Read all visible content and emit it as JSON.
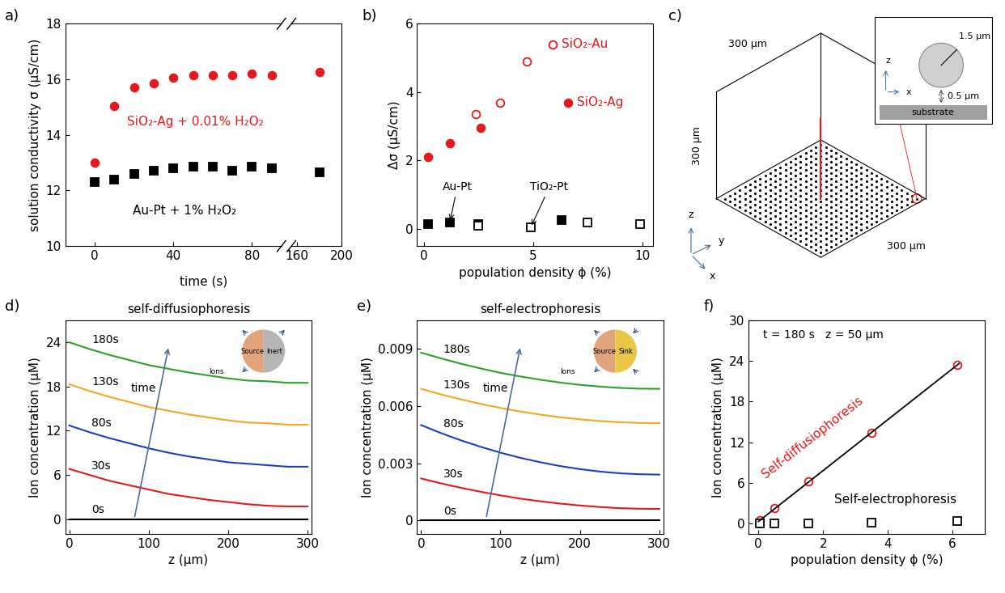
{
  "chart_data": [
    {
      "panel": "a)",
      "type": "scatter",
      "xlabel": "time (s)",
      "ylabel": "solution conductivity σ (μS/cm)",
      "xlim": [
        [
          -15,
          95
        ],
        [
          155,
          200
        ]
      ],
      "xticks": [
        0,
        40,
        80,
        160,
        200
      ],
      "ylim": [
        10,
        18
      ],
      "yticks": [
        10,
        12,
        14,
        16,
        18
      ],
      "series": [
        {
          "name": "SiO₂-Ag + 0.01% H₂O₂",
          "color": "#e31a1c",
          "marker": "circle",
          "x": [
            0,
            10,
            20,
            30,
            40,
            50,
            60,
            70,
            80,
            90,
            180
          ],
          "values": [
            13.0,
            15.05,
            15.7,
            15.85,
            16.05,
            16.15,
            16.15,
            16.15,
            16.2,
            16.15,
            16.25
          ]
        },
        {
          "name": "Au-Pt + 1% H₂O₂",
          "color": "#000000",
          "marker": "square",
          "x": [
            0,
            10,
            20,
            30,
            40,
            50,
            60,
            70,
            80,
            90,
            180
          ],
          "values": [
            12.3,
            12.4,
            12.6,
            12.7,
            12.8,
            12.85,
            12.85,
            12.7,
            12.85,
            12.8,
            12.65
          ]
        }
      ]
    },
    {
      "panel": "b)",
      "type": "scatter",
      "xlabel": "population density ϕ (%)",
      "ylabel": "Δσ (μS/cm)",
      "xlim": [
        -0.3,
        10.5
      ],
      "xticks": [
        0,
        5,
        10
      ],
      "ylim": [
        -0.5,
        6
      ],
      "yticks": [
        0,
        2,
        4,
        6
      ],
      "series": [
        {
          "name": "SiO₂-Au",
          "color": "#e31a1c",
          "marker": "open_circle",
          "x": [
            2.4,
            3.5,
            4.7,
            5.9
          ],
          "values": [
            3.35,
            3.7,
            4.9,
            5.4
          ]
        },
        {
          "name": "SiO₂-Ag",
          "color": "#e31a1c",
          "marker": "circle",
          "x": [
            0.2,
            1.2,
            2.6,
            6.6
          ],
          "values": [
            2.1,
            2.5,
            2.95,
            3.7
          ]
        },
        {
          "name": "Au-Pt",
          "color": "#000000",
          "marker": "square",
          "x": [
            0.2,
            1.2,
            2.5,
            6.3
          ],
          "values": [
            0.15,
            0.2,
            0.15,
            0.25
          ]
        },
        {
          "name": "TiO₂-Pt",
          "color": "#000000",
          "marker": "open_square",
          "x": [
            2.5,
            4.9,
            7.5,
            9.9
          ],
          "values": [
            0.1,
            0.05,
            0.2,
            0.15
          ]
        }
      ]
    },
    {
      "panel": "d)",
      "type": "line",
      "title": "self-diffusiophoresis",
      "xlabel": "z (μm)",
      "ylabel": "Ion concentration (μM)",
      "xlim": [
        -5,
        305
      ],
      "xticks": [
        0,
        100,
        200,
        300
      ],
      "ylim": [
        -2,
        27
      ],
      "yticks": [
        0,
        6,
        12,
        18,
        24
      ],
      "annotations": [
        "time",
        "Source",
        "Inert",
        "Ions"
      ],
      "x": [
        0,
        25,
        50,
        75,
        100,
        125,
        150,
        175,
        200,
        225,
        250,
        275,
        300
      ],
      "series": [
        {
          "name": "0s",
          "color": "#000000",
          "values": [
            0,
            0,
            0,
            0,
            0,
            0,
            0,
            0,
            0,
            0,
            0,
            0,
            0
          ]
        },
        {
          "name": "30s",
          "color": "#e31a1c",
          "values": [
            6.8,
            6.0,
            5.2,
            4.6,
            4.0,
            3.4,
            3.0,
            2.6,
            2.3,
            2.0,
            1.8,
            1.7,
            1.7
          ]
        },
        {
          "name": "80s",
          "color": "#1f3fbf",
          "values": [
            12.7,
            11.8,
            11.0,
            10.3,
            9.6,
            9.0,
            8.5,
            8.1,
            7.7,
            7.5,
            7.3,
            7.1,
            7.1
          ]
        },
        {
          "name": "130s",
          "color": "#f5a623",
          "values": [
            18.3,
            17.4,
            16.6,
            15.9,
            15.2,
            14.7,
            14.2,
            13.8,
            13.4,
            13.1,
            13.0,
            12.8,
            12.8
          ]
        },
        {
          "name": "180s",
          "color": "#2ca02c",
          "values": [
            24.0,
            23.1,
            22.3,
            21.6,
            20.9,
            20.4,
            19.9,
            19.5,
            19.1,
            18.8,
            18.7,
            18.5,
            18.5
          ]
        }
      ]
    },
    {
      "panel": "e)",
      "type": "line",
      "title": "self-electrophoresis",
      "xlabel": "z (μm)",
      "ylabel": "Ion concentration (μM)",
      "xlim": [
        -5,
        305
      ],
      "xticks": [
        0,
        100,
        200,
        300
      ],
      "ylim": [
        -0.0007,
        0.0105
      ],
      "yticks": [
        0,
        0.003,
        0.006,
        0.009
      ],
      "annotations": [
        "time",
        "Source",
        "Sink",
        "Ions"
      ],
      "x": [
        0,
        25,
        50,
        75,
        100,
        125,
        150,
        175,
        200,
        225,
        250,
        275,
        300
      ],
      "series": [
        {
          "name": "0s",
          "color": "#000000",
          "values": [
            0,
            0,
            0,
            0,
            0,
            0,
            0,
            0,
            0,
            0,
            0,
            0,
            0
          ]
        },
        {
          "name": "30s",
          "color": "#e31a1c",
          "values": [
            0.0022,
            0.00194,
            0.00171,
            0.0015,
            0.00131,
            0.00114,
            0.001,
            0.00088,
            0.00078,
            0.0007,
            0.00064,
            0.00061,
            0.0006
          ]
        },
        {
          "name": "80s",
          "color": "#1f3fbf",
          "values": [
            0.005,
            0.00458,
            0.0042,
            0.00386,
            0.00355,
            0.00328,
            0.00305,
            0.00285,
            0.00269,
            0.00256,
            0.00247,
            0.00242,
            0.0024
          ]
        },
        {
          "name": "130s",
          "color": "#f5a623",
          "values": [
            0.0069,
            0.00661,
            0.00635,
            0.00611,
            0.0059,
            0.00571,
            0.00555,
            0.00541,
            0.0053,
            0.00521,
            0.00515,
            0.00511,
            0.0051
          ]
        },
        {
          "name": "180s",
          "color": "#2ca02c",
          "values": [
            0.0088,
            0.0085,
            0.00822,
            0.00797,
            0.00774,
            0.00755,
            0.00738,
            0.00723,
            0.00711,
            0.00702,
            0.00695,
            0.00691,
            0.0069
          ]
        }
      ]
    },
    {
      "panel": "f)",
      "type": "scatter",
      "xlabel": "population density ϕ (%)",
      "ylabel": "Ion concentration (μM)",
      "xlim": [
        -0.3,
        7
      ],
      "xticks": [
        0,
        2,
        4,
        6
      ],
      "ylim": [
        -1.5,
        30
      ],
      "yticks": [
        0,
        6,
        12,
        18,
        24,
        30
      ],
      "annotations": [
        "t = 180 s   z = 50 μm"
      ],
      "series": [
        {
          "name": "Self-diffusiophoresis",
          "color": "#e31a1c",
          "marker": "open_circle",
          "x": [
            0.05,
            0.5,
            1.55,
            3.5,
            6.15
          ],
          "values": [
            0.5,
            2.3,
            6.2,
            13.4,
            23.4
          ]
        },
        {
          "name": "Self-electrophoresis",
          "color": "#000000",
          "marker": "open_square",
          "x": [
            0.05,
            0.5,
            1.55,
            3.5,
            6.15
          ],
          "values": [
            0,
            0,
            0,
            0.1,
            0.4
          ]
        },
        {
          "type": "line",
          "color": "#000000",
          "x": [
            0,
            6.2
          ],
          "values": [
            0.3,
            23.6
          ]
        }
      ]
    }
  ],
  "diagram": {
    "panel": "c)",
    "box": {
      "width": "300 μm",
      "height": "300 μm",
      "depth": "300 μm"
    },
    "axes": [
      "x",
      "y",
      "z"
    ],
    "inset": {
      "radius": "1.5 μm",
      "gap": "0.5 μm",
      "substrate": "substrate",
      "axes": [
        "z",
        "x"
      ]
    }
  }
}
